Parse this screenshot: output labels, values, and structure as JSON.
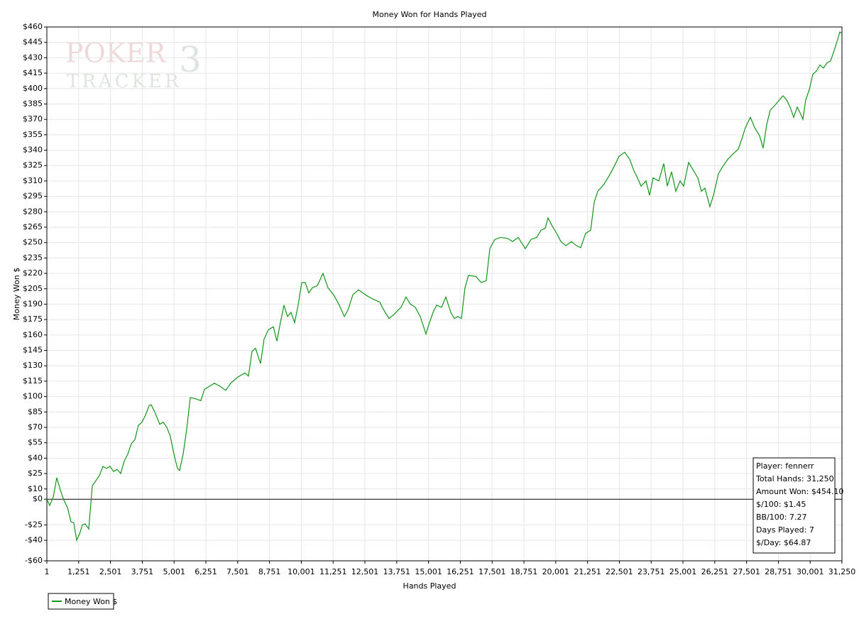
{
  "chart_data": {
    "type": "line",
    "title": "Money Won for Hands Played",
    "xlabel": "Hands Played",
    "ylabel": "Money Won $",
    "watermark": [
      "POKER",
      "3",
      "TRACKER"
    ],
    "grid": true,
    "legend": "bottom-left",
    "info_box": [
      "Player: fennerr",
      "Total Hands: 31,250",
      "Amount Won: $454.10",
      "$/100: $1.45",
      "BB/100: 7.27",
      "Days Played: 7",
      "$/Day: $64.87"
    ],
    "xlim": [
      1,
      31250
    ],
    "ylim": [
      -60,
      460
    ],
    "xticks": [
      1,
      {
        "value": 1251,
        "label": "1,251"
      },
      {
        "value": 2501,
        "label": "2,501"
      },
      {
        "value": 3751,
        "label": "3,751"
      },
      {
        "value": 5001,
        "label": "5,001"
      },
      {
        "value": 6251,
        "label": "6,251"
      },
      {
        "value": 7501,
        "label": "7,501"
      },
      {
        "value": 8751,
        "label": "8,751"
      },
      {
        "value": 10001,
        "label": "10,001"
      },
      {
        "value": 11251,
        "label": "11,251"
      },
      {
        "value": 12501,
        "label": "12,501"
      },
      {
        "value": 13751,
        "label": "13,751"
      },
      {
        "value": 15001,
        "label": "15,001"
      },
      {
        "value": 16251,
        "label": "16,251"
      },
      {
        "value": 17501,
        "label": "17,501"
      },
      {
        "value": 18751,
        "label": "18,751"
      },
      {
        "value": 20001,
        "label": "20,001"
      },
      {
        "value": 21251,
        "label": "21,251"
      },
      {
        "value": 22501,
        "label": "22,501"
      },
      {
        "value": 23751,
        "label": "23,751"
      },
      {
        "value": 25001,
        "label": "25,001"
      },
      {
        "value": 26251,
        "label": "26,251"
      },
      {
        "value": 27501,
        "label": "27,501"
      },
      {
        "value": 28751,
        "label": "28,751"
      },
      {
        "value": 30001,
        "label": "30,001"
      },
      {
        "value": 31250,
        "label": "31,250"
      }
    ],
    "yticks": [
      {
        "value": 460,
        "label": "$460"
      },
      {
        "value": 445,
        "label": "$445"
      },
      {
        "value": 430,
        "label": "$430"
      },
      {
        "value": 415,
        "label": "$415"
      },
      {
        "value": 400,
        "label": "$400"
      },
      {
        "value": 385,
        "label": "$385"
      },
      {
        "value": 370,
        "label": "$370"
      },
      {
        "value": 355,
        "label": "$355"
      },
      {
        "value": 340,
        "label": "$340"
      },
      {
        "value": 325,
        "label": "$325"
      },
      {
        "value": 310,
        "label": "$310"
      },
      {
        "value": 295,
        "label": "$295"
      },
      {
        "value": 280,
        "label": "$280"
      },
      {
        "value": 265,
        "label": "$265"
      },
      {
        "value": 250,
        "label": "$250"
      },
      {
        "value": 235,
        "label": "$235"
      },
      {
        "value": 220,
        "label": "$220"
      },
      {
        "value": 205,
        "label": "$205"
      },
      {
        "value": 190,
        "label": "$190"
      },
      {
        "value": 175,
        "label": "$175"
      },
      {
        "value": 160,
        "label": "$160"
      },
      {
        "value": 145,
        "label": "$145"
      },
      {
        "value": 130,
        "label": "$130"
      },
      {
        "value": 115,
        "label": "$115"
      },
      {
        "value": 100,
        "label": "$100"
      },
      {
        "value": 85,
        "label": "$85"
      },
      {
        "value": 70,
        "label": "$70"
      },
      {
        "value": 55,
        "label": "$55"
      },
      {
        "value": 40,
        "label": "$40"
      },
      {
        "value": 25,
        "label": "$25"
      },
      {
        "value": 10,
        "label": "$10"
      },
      {
        "value": 0,
        "label": "$0"
      },
      {
        "value": -25,
        "label": "-$25"
      },
      {
        "value": -40,
        "label": "-$40"
      },
      {
        "value": -60,
        "label": "-$60"
      }
    ],
    "zero_line_color": "#000000",
    "series": [
      {
        "name": "Money Won $",
        "color": "#13951a",
        "x": [
          1,
          113,
          252,
          392,
          531,
          671,
          810,
          950,
          1061,
          1173,
          1284,
          1396,
          1508,
          1647,
          1787,
          1926,
          2066,
          2205,
          2345,
          2484,
          2624,
          2763,
          2903,
          3042,
          3182,
          3321,
          3461,
          3600,
          3740,
          3879,
          4019,
          4102,
          4242,
          4437,
          4577,
          4716,
          4856,
          4995,
          5135,
          5218,
          5358,
          5497,
          5637,
          5832,
          6055,
          6195,
          6390,
          6585,
          6808,
          7032,
          7227,
          7506,
          7785,
          7925,
          8064,
          8204,
          8399,
          8538,
          8706,
          8901,
          9041,
          9180,
          9320,
          9459,
          9599,
          9738,
          9877,
          10017,
          10157,
          10296,
          10436,
          10631,
          10854,
          11050,
          11273,
          11496,
          11691,
          11831,
          12026,
          12249,
          12528,
          12807,
          13086,
          13226,
          13449,
          13644,
          13923,
          14118,
          14286,
          14481,
          14676,
          14900,
          15039,
          15179,
          15318,
          15513,
          15681,
          15876,
          16016,
          16155,
          16295,
          16434,
          16574,
          16853,
          17076,
          17271,
          17411,
          17606,
          17829,
          18108,
          18304,
          18527,
          18806,
          19029,
          19252,
          19420,
          19587,
          19698,
          19866,
          20061,
          20201,
          20396,
          20619,
          20814,
          20982,
          21177,
          21372,
          21512,
          21651,
          21875,
          22098,
          22293,
          22488,
          22712,
          22907,
          23074,
          23214,
          23353,
          23549,
          23688,
          23828,
          24051,
          24246,
          24386,
          24553,
          24721,
          24888,
          25028,
          25223,
          25418,
          25586,
          25725,
          25865,
          26060,
          26200,
          26395,
          26562,
          26758,
          26953,
          27176,
          27316,
          27455,
          27650,
          27818,
          28013,
          28153,
          28292,
          28431,
          28627,
          28794,
          28934,
          29073,
          29213,
          29352,
          29492,
          29631,
          29715,
          29826,
          29966,
          30105,
          30245,
          30384,
          30524,
          30663,
          30803,
          30942,
          31082,
          31165,
          31250
        ],
        "values": [
          0,
          -6,
          2,
          21,
          9,
          -1,
          -8,
          -22,
          -23,
          -40,
          -34,
          -25,
          -24,
          -29,
          13,
          18,
          23,
          32,
          30,
          32,
          27,
          29,
          25,
          37,
          44,
          54,
          58,
          72,
          75,
          82,
          91,
          92,
          85,
          73,
          75,
          70,
          61,
          44,
          30,
          28,
          44,
          68,
          99,
          98,
          96,
          107,
          110,
          113,
          110,
          106,
          113,
          119,
          123,
          120,
          144,
          147,
          132,
          156,
          165,
          168,
          154,
          172,
          189,
          178,
          182,
          172,
          189,
          211,
          211,
          201,
          206,
          208,
          220,
          206,
          199,
          189,
          178,
          184,
          199,
          204,
          199,
          195,
          192,
          185,
          176,
          180,
          187,
          197,
          190,
          187,
          178,
          161,
          172,
          182,
          189,
          187,
          197,
          182,
          176,
          178,
          176,
          206,
          218,
          217,
          211,
          213,
          244,
          253,
          255,
          254,
          251,
          255,
          244,
          253,
          255,
          262,
          264,
          274,
          266,
          258,
          251,
          247,
          251,
          247,
          245,
          259,
          262,
          289,
          300,
          306,
          315,
          324,
          334,
          338,
          331,
          320,
          313,
          305,
          310,
          296,
          313,
          310,
          327,
          305,
          319,
          300,
          310,
          305,
          328,
          320,
          313,
          300,
          303,
          285,
          296,
          317,
          324,
          331,
          336,
          341,
          351,
          362,
          372,
          362,
          354,
          342,
          365,
          379,
          384,
          389,
          393,
          389,
          382,
          372,
          382,
          375,
          370,
          389,
          399,
          414,
          417,
          423,
          420,
          425,
          427,
          437,
          448,
          455,
          454.1
        ]
      }
    ]
  }
}
